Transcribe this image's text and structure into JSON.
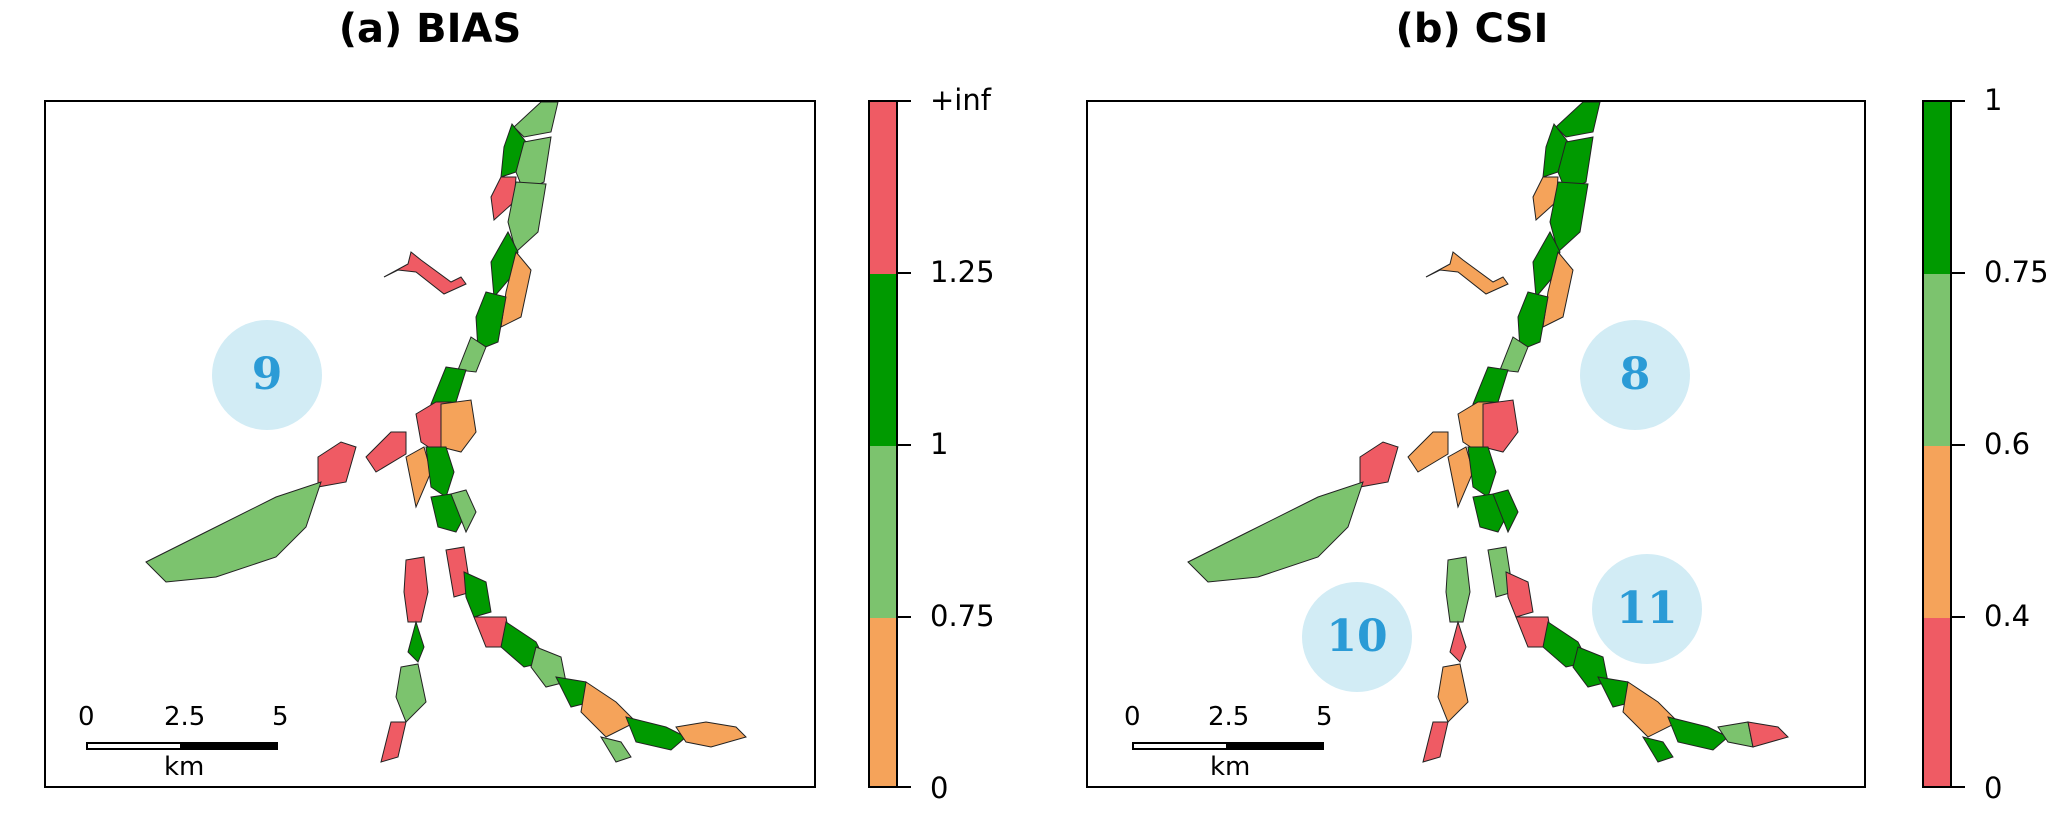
{
  "colors": {
    "red": "#ef5b64",
    "orange": "#f5a35a",
    "light_green": "#7cc36e",
    "dark_green": "#009a00",
    "circle_fill": "#d2ecf5",
    "circle_text": "#2b9bd6"
  },
  "panels": [
    {
      "title": "(a) BIAS",
      "legend": {
        "bins": [
          {
            "from": "0",
            "to": "0.75",
            "color": "#f5a35a"
          },
          {
            "from": "0.75",
            "to": "1",
            "color": "#7cc36e"
          },
          {
            "from": "1",
            "to": "1.25",
            "color": "#009a00"
          },
          {
            "from": "1.25",
            "to": "+inf",
            "color": "#ef5b64"
          }
        ],
        "tick_labels": [
          "0",
          "0.75",
          "1",
          "1.25",
          "+inf"
        ]
      },
      "region_labels": [
        "9"
      ],
      "scale_bar": {
        "labels": [
          "0",
          "2.5",
          "5"
        ],
        "unit": "km"
      }
    },
    {
      "title": "(b) CSI",
      "legend": {
        "bins": [
          {
            "from": "0",
            "to": "0.4",
            "color": "#ef5b64"
          },
          {
            "from": "0.4",
            "to": "0.6",
            "color": "#f5a35a"
          },
          {
            "from": "0.6",
            "to": "0.75",
            "color": "#7cc36e"
          },
          {
            "from": "0.75",
            "to": "1",
            "color": "#009a00"
          }
        ],
        "tick_labels": [
          "0",
          "0.4",
          "0.6",
          "0.75",
          "1"
        ]
      },
      "region_labels": [
        "8",
        "10",
        "11"
      ],
      "scale_bar": {
        "labels": [
          "0",
          "2.5",
          "5"
        ],
        "unit": "km"
      }
    }
  ]
}
